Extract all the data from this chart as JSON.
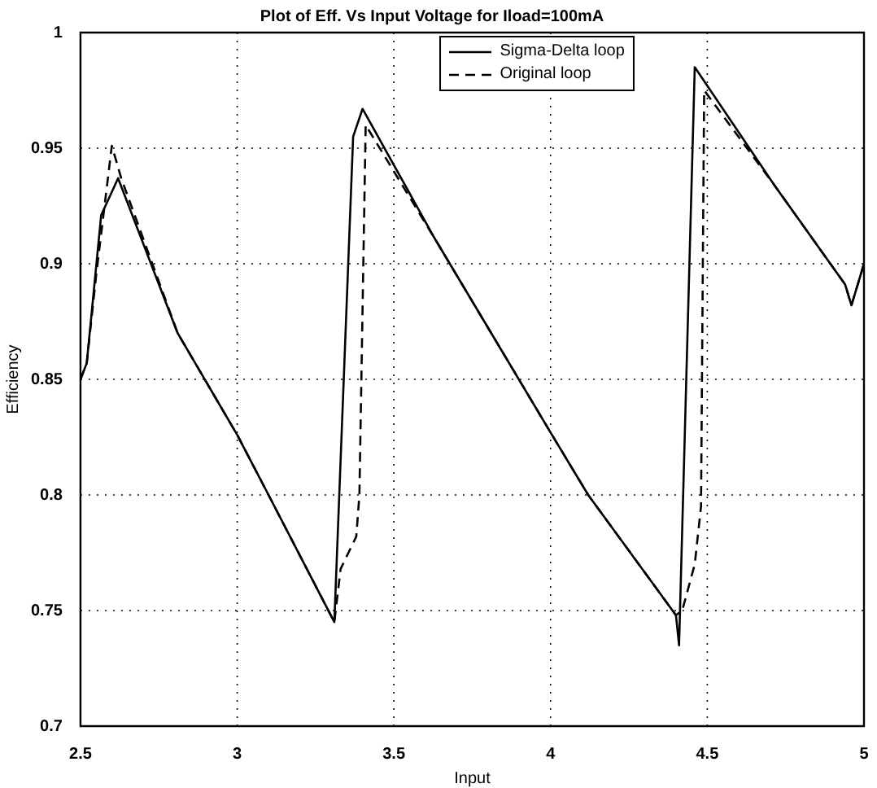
{
  "chart_data": {
    "type": "line",
    "title": "Plot of Eff. Vs Input Voltage for Iload=100mA",
    "xlabel": "Input",
    "ylabel": "Efficiency",
    "xlim": [
      2.5,
      5
    ],
    "xticks": [
      2.5,
      3,
      3.5,
      4,
      4.5,
      5
    ],
    "ylim": [
      0.7,
      1
    ],
    "yticks": [
      0.7,
      0.75,
      0.8,
      0.85,
      0.9,
      0.95,
      1
    ],
    "grid": true,
    "legend": "top",
    "marker": "none",
    "series": [
      {
        "name": "Sigma-Delta loop",
        "color": "#000000",
        "line_style": "solid",
        "x": [
          2.5,
          2.52,
          2.566,
          2.62,
          2.81,
          3.0,
          3.1,
          3.31,
          3.37,
          3.4,
          3.63,
          4.0,
          4.12,
          4.4,
          4.41,
          4.46,
          4.714,
          4.94,
          4.96,
          5.0
        ],
        "values": [
          0.85,
          0.857,
          0.921,
          0.937,
          0.87,
          0.826,
          0.8,
          0.745,
          0.955,
          0.967,
          0.911,
          0.827,
          0.8,
          0.748,
          0.735,
          0.985,
          0.934,
          0.891,
          0.882,
          0.9
        ]
      },
      {
        "name": "Original loop",
        "color": "#000000",
        "line_style": "dashed",
        "x": [
          2.5,
          2.52,
          2.55,
          2.6,
          2.63,
          2.81,
          3.0,
          3.1,
          3.31,
          3.33,
          3.38,
          3.39,
          3.41,
          3.63,
          4.0,
          4.12,
          4.4,
          4.42,
          4.46,
          4.48,
          4.49,
          4.714,
          4.94,
          4.96,
          5.0
        ],
        "values": [
          0.85,
          0.857,
          0.895,
          0.951,
          0.937,
          0.87,
          0.826,
          0.8,
          0.745,
          0.768,
          0.782,
          0.8,
          0.96,
          0.911,
          0.827,
          0.8,
          0.748,
          0.75,
          0.77,
          0.795,
          0.975,
          0.934,
          0.891,
          0.882,
          0.9
        ]
      }
    ]
  }
}
